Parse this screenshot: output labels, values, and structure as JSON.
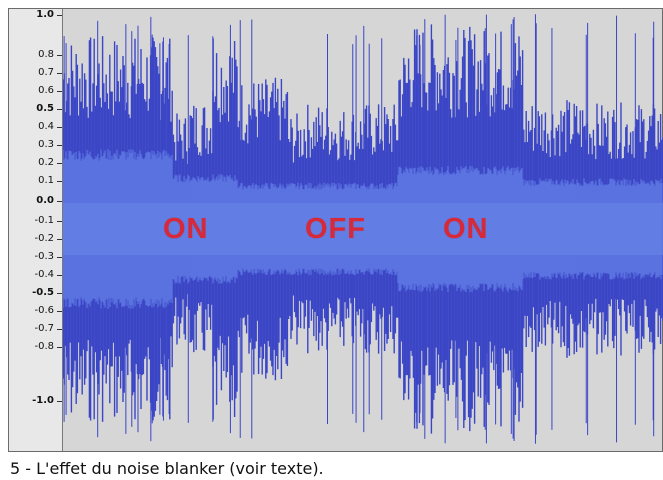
{
  "ruler": {
    "ticks": [
      "1.0",
      "0.8",
      "0.7",
      "0.6",
      "0.5",
      "0.4",
      "0.3",
      "0.2",
      "0.1",
      "0.0",
      "-0.1",
      "-0.2",
      "-0.3",
      "-0.4",
      "-0.5",
      "-0.6",
      "-0.7",
      "-0.8",
      "-1.0"
    ],
    "bold_ticks": [
      "1.0",
      "0.5",
      "0.0",
      "-0.5",
      "-1.0"
    ]
  },
  "labels": {
    "on_1": "ON",
    "off": "OFF",
    "on_2": "ON"
  },
  "caption": "5 - L'effet du noise blanker (voir texte).",
  "colors": {
    "background": "#d6d6d6",
    "waveform_outer": "#3b46c6",
    "waveform_inner": "#5a73e0",
    "labels": "#d62a3a"
  }
}
